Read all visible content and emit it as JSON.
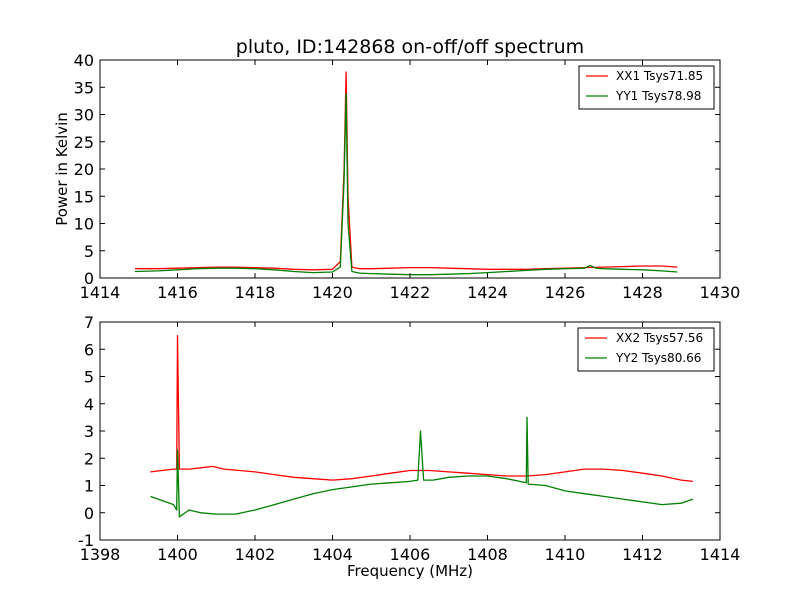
{
  "figure": {
    "title": "pluto, ID:142868 on-off/off spectrum"
  },
  "chart_data": [
    {
      "type": "line",
      "title": "pluto, ID:142868 on-off/off spectrum",
      "xlabel": "",
      "ylabel": "Power in Kelvin",
      "xlim": [
        1414,
        1430
      ],
      "ylim": [
        0,
        40
      ],
      "xticks": [
        1414,
        1416,
        1418,
        1420,
        1422,
        1424,
        1426,
        1428,
        1430
      ],
      "yticks": [
        0,
        5,
        10,
        15,
        20,
        25,
        30,
        35,
        40
      ],
      "legend_position": "top-right",
      "series": [
        {
          "name": "XX1 Tsys71.85",
          "color": "#ff0000",
          "x": [
            1414.9,
            1415.5,
            1416.0,
            1416.5,
            1417.0,
            1417.5,
            1418.0,
            1418.5,
            1419.0,
            1419.5,
            1420.0,
            1420.2,
            1420.3,
            1420.35,
            1420.4,
            1420.5,
            1420.7,
            1421.0,
            1421.5,
            1422.0,
            1422.5,
            1423.0,
            1423.5,
            1424.0,
            1424.5,
            1425.0,
            1425.5,
            1426.0,
            1426.5,
            1427.0,
            1427.5,
            1428.0,
            1428.5,
            1428.9
          ],
          "y": [
            1.7,
            1.7,
            1.8,
            1.9,
            2.0,
            2.0,
            1.9,
            1.8,
            1.6,
            1.5,
            1.6,
            3.0,
            20.0,
            37.8,
            15.0,
            2.0,
            1.7,
            1.7,
            1.8,
            1.9,
            1.9,
            1.8,
            1.7,
            1.6,
            1.6,
            1.6,
            1.7,
            1.8,
            1.9,
            2.0,
            2.1,
            2.2,
            2.2,
            2.0
          ]
        },
        {
          "name": "YY1 Tsys78.98",
          "color": "#008000",
          "x": [
            1414.9,
            1415.5,
            1416.0,
            1416.5,
            1417.0,
            1417.5,
            1418.0,
            1418.5,
            1419.0,
            1419.5,
            1420.0,
            1420.2,
            1420.3,
            1420.35,
            1420.4,
            1420.5,
            1420.7,
            1421.0,
            1421.5,
            1422.0,
            1422.5,
            1423.0,
            1423.5,
            1424.0,
            1424.5,
            1425.0,
            1425.5,
            1426.0,
            1426.5,
            1426.65,
            1426.8,
            1427.0,
            1427.5,
            1428.0,
            1428.5,
            1428.9
          ],
          "y": [
            1.2,
            1.3,
            1.5,
            1.7,
            1.8,
            1.8,
            1.7,
            1.5,
            1.2,
            1.0,
            1.1,
            2.0,
            18.0,
            33.8,
            10.0,
            1.2,
            0.9,
            0.8,
            0.7,
            0.6,
            0.6,
            0.7,
            0.8,
            1.0,
            1.2,
            1.4,
            1.6,
            1.7,
            1.8,
            2.3,
            1.8,
            1.7,
            1.6,
            1.5,
            1.3,
            1.1
          ]
        }
      ]
    },
    {
      "type": "line",
      "title": "",
      "xlabel": "Frequency (MHz)",
      "ylabel": "",
      "xlim": [
        1398,
        1414
      ],
      "ylim": [
        -1,
        7
      ],
      "xticks": [
        1398,
        1400,
        1402,
        1404,
        1406,
        1408,
        1410,
        1412,
        1414
      ],
      "yticks": [
        -1,
        0,
        1,
        2,
        3,
        4,
        5,
        6,
        7
      ],
      "legend_position": "top-right",
      "series": [
        {
          "name": "XX2 Tsys57.56",
          "color": "#ff0000",
          "x": [
            1399.3,
            1399.6,
            1399.9,
            1399.98,
            1400.0,
            1400.05,
            1400.3,
            1400.6,
            1400.9,
            1401.2,
            1401.6,
            1402.0,
            1402.5,
            1403.0,
            1403.5,
            1404.0,
            1404.5,
            1405.0,
            1405.5,
            1406.0,
            1406.3,
            1406.5,
            1407.0,
            1407.5,
            1408.0,
            1408.5,
            1409.0,
            1409.5,
            1410.0,
            1410.5,
            1411.0,
            1411.5,
            1412.0,
            1412.5,
            1413.0,
            1413.3
          ],
          "y": [
            1.5,
            1.55,
            1.6,
            1.6,
            6.5,
            1.6,
            1.6,
            1.65,
            1.7,
            1.6,
            1.55,
            1.5,
            1.4,
            1.3,
            1.25,
            1.2,
            1.25,
            1.35,
            1.45,
            1.55,
            1.55,
            1.55,
            1.5,
            1.45,
            1.4,
            1.35,
            1.35,
            1.4,
            1.5,
            1.6,
            1.6,
            1.55,
            1.45,
            1.35,
            1.2,
            1.15
          ]
        },
        {
          "name": "YY2 Tsys80.66",
          "color": "#008000",
          "x": [
            1399.3,
            1399.6,
            1399.9,
            1399.98,
            1400.0,
            1400.05,
            1400.3,
            1400.6,
            1401.0,
            1401.5,
            1402.0,
            1402.5,
            1403.0,
            1403.5,
            1404.0,
            1404.5,
            1405.0,
            1405.5,
            1406.0,
            1406.2,
            1406.27,
            1406.35,
            1406.6,
            1407.0,
            1407.5,
            1408.0,
            1408.5,
            1409.0,
            1409.02,
            1409.05,
            1409.5,
            1410.0,
            1410.5,
            1411.0,
            1411.5,
            1412.0,
            1412.5,
            1413.0,
            1413.3
          ],
          "y": [
            0.6,
            0.45,
            0.3,
            0.1,
            2.3,
            -0.15,
            0.1,
            0.0,
            -0.05,
            -0.05,
            0.1,
            0.3,
            0.5,
            0.7,
            0.85,
            0.95,
            1.05,
            1.1,
            1.15,
            1.2,
            3.0,
            1.2,
            1.2,
            1.3,
            1.35,
            1.35,
            1.25,
            1.1,
            3.5,
            1.05,
            1.0,
            0.8,
            0.7,
            0.6,
            0.5,
            0.4,
            0.3,
            0.35,
            0.5
          ]
        }
      ]
    }
  ]
}
